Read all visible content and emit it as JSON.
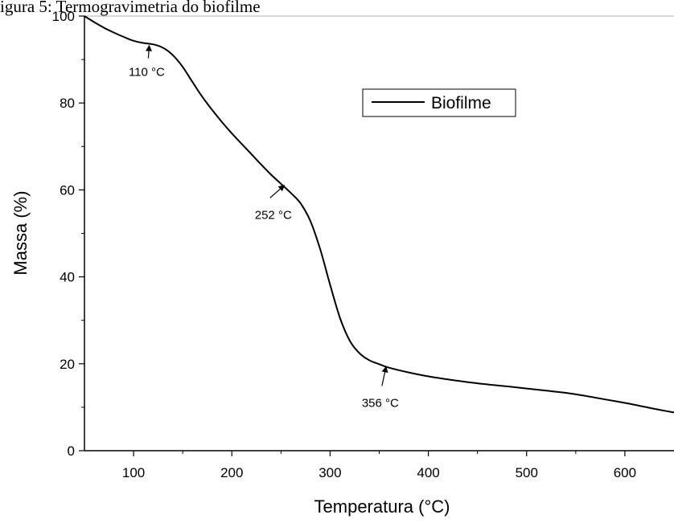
{
  "caption": "igura 5: Termogravimetria do biofilme",
  "chart_data": {
    "type": "line",
    "title": "",
    "xlabel": "Temperatura (°C)",
    "ylabel": "Massa (%)",
    "xlim": [
      50,
      650
    ],
    "ylim": [
      0,
      100
    ],
    "x_ticks": [
      100,
      200,
      300,
      400,
      500,
      600
    ],
    "y_ticks": [
      0,
      20,
      40,
      60,
      80,
      100
    ],
    "grid": false,
    "legend_position": "top-right",
    "series": [
      {
        "name": "Biofilme",
        "color": "#000000",
        "x": [
          50,
          60,
          70,
          80,
          90,
          100,
          110,
          120,
          130,
          140,
          150,
          160,
          170,
          180,
          190,
          200,
          210,
          220,
          230,
          240,
          250,
          260,
          270,
          280,
          290,
          300,
          310,
          320,
          330,
          340,
          350,
          360,
          380,
          400,
          420,
          450,
          480,
          500,
          520,
          540,
          560,
          580,
          600,
          620,
          640,
          650
        ],
        "y": [
          100,
          98.6,
          97.3,
          96.2,
          95.2,
          94.3,
          93.8,
          93.5,
          92.7,
          91.0,
          88.3,
          84.8,
          81.4,
          78.4,
          75.6,
          73.0,
          70.6,
          68.2,
          65.8,
          63.5,
          61.4,
          59.3,
          56.9,
          52.8,
          46.3,
          38.2,
          30.6,
          25.3,
          22.4,
          20.8,
          19.9,
          19.1,
          18.0,
          17.1,
          16.4,
          15.5,
          14.8,
          14.3,
          13.8,
          13.3,
          12.6,
          11.8,
          11.0,
          10.1,
          9.2,
          8.8
        ]
      }
    ],
    "annotations": [
      {
        "text": "110 °C",
        "x": 115,
        "y": 93.6
      },
      {
        "text": "252 °C",
        "x": 252,
        "y": 61.5
      },
      {
        "text": "356 °C",
        "x": 356,
        "y": 19.7
      }
    ]
  }
}
